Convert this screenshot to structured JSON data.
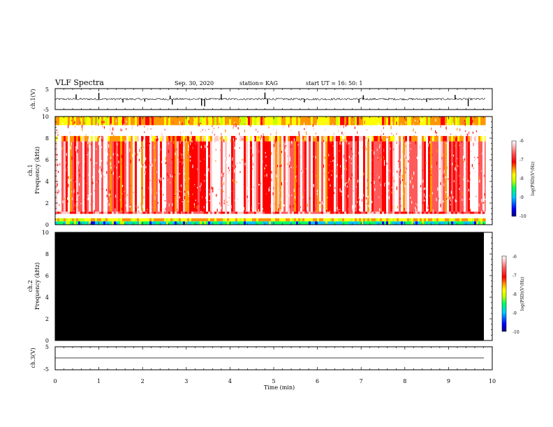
{
  "header": {
    "title": "VLF Spectra",
    "date": "Sep. 30, 2020",
    "station": "station= KAG",
    "start": "start  UT  =   16: 50: 1"
  },
  "colors": {
    "background": "#ffffff",
    "axes": "#000000",
    "ch2_fill": "#000000",
    "colormap": [
      "#000080",
      "#0000ff",
      "#00c8ff",
      "#00ff64",
      "#c8ff00",
      "#ffff00",
      "#ff9600",
      "#ff0000",
      "#ff5a5a",
      "#ffc8c8",
      "#ffffff"
    ]
  },
  "chart_data": [
    {
      "type": "line",
      "name": "ch1-waveform",
      "ylabel": "ch.1(V)",
      "ylim": [
        -5,
        5
      ],
      "yticks": [
        "5",
        "-5"
      ],
      "baseline": 0,
      "spikes": [
        {
          "t": 0.48,
          "v": 2.2
        },
        {
          "t": 1.0,
          "v": 3.0
        },
        {
          "t": 1.55,
          "v": -1.6
        },
        {
          "t": 2.05,
          "v": -1.2
        },
        {
          "t": 2.68,
          "v": -2.6
        },
        {
          "t": 2.63,
          "v": 1.6
        },
        {
          "t": 3.35,
          "v": -3.2
        },
        {
          "t": 3.42,
          "v": -3.5
        },
        {
          "t": 3.8,
          "v": 2.4
        },
        {
          "t": 4.8,
          "v": 3.1
        },
        {
          "t": 4.86,
          "v": -2.4
        },
        {
          "t": 5.7,
          "v": -1.6
        },
        {
          "t": 6.95,
          "v": -1.8
        },
        {
          "t": 7.05,
          "v": 1.8
        },
        {
          "t": 8.5,
          "v": -1.4
        },
        {
          "t": 9.15,
          "v": 2.0
        },
        {
          "t": 9.45,
          "v": -3.4
        }
      ]
    },
    {
      "type": "heatmap",
      "name": "ch1-spectrogram",
      "ylabel_top": "ch.1",
      "ylabel": "Frequency (kHz)",
      "xlim": [
        0,
        10
      ],
      "ylim": [
        0,
        10
      ],
      "yticks": [
        "0",
        "2",
        "4",
        "6",
        "8",
        "10"
      ],
      "data_end_min": 9.85,
      "bands": [
        {
          "f0": 9.2,
          "f1": 10.0,
          "level": -7.8
        },
        {
          "f0": 7.7,
          "f1": 8.2,
          "level": -7.5
        },
        {
          "f0": 1.2,
          "f1": 7.7,
          "level": -7.0
        },
        {
          "f0": 1.0,
          "f1": 1.2,
          "level": -6.8
        },
        {
          "f0": 0.3,
          "f1": 0.6,
          "level": -7.9
        },
        {
          "f0": 0.0,
          "f1": 0.3,
          "level": -9.0
        }
      ],
      "gaps_kHz": [
        [
          0.6,
          1.0
        ]
      ]
    },
    {
      "type": "heatmap",
      "name": "ch2-spectrogram",
      "ylabel_top": "ch.2",
      "ylabel": "Frequency (kHz)",
      "xlim": [
        0,
        10
      ],
      "ylim": [
        0,
        10
      ],
      "yticks": [
        "0",
        "2",
        "4",
        "6",
        "8",
        "10"
      ],
      "data_end_min": 9.85,
      "fill": "none (black)"
    },
    {
      "type": "line",
      "name": "ch3-waveform",
      "ylabel": "ch.3(V)",
      "ylim": [
        -5,
        5
      ],
      "yticks": [
        "5",
        "-5"
      ],
      "baseline": 0
    }
  ],
  "xaxis": {
    "label": "Time  (min)",
    "ticks": [
      "0",
      "1",
      "2",
      "3",
      "4",
      "5",
      "6",
      "7",
      "8",
      "9",
      "10"
    ],
    "range": [
      0,
      10
    ]
  },
  "colorbars": [
    {
      "name": "colorbar-ch1",
      "label": "log(PSD)(V²/Hz)",
      "ticks": [
        "-6",
        "-7",
        "-8",
        "-9",
        "-10"
      ],
      "range": [
        -10,
        -6
      ]
    },
    {
      "name": "colorbar-ch2",
      "label": "log(PSD)(V²/Hz)",
      "ticks": [
        "-6",
        "-7",
        "-8",
        "-9",
        "-10"
      ],
      "range": [
        -10,
        -6
      ]
    }
  ]
}
